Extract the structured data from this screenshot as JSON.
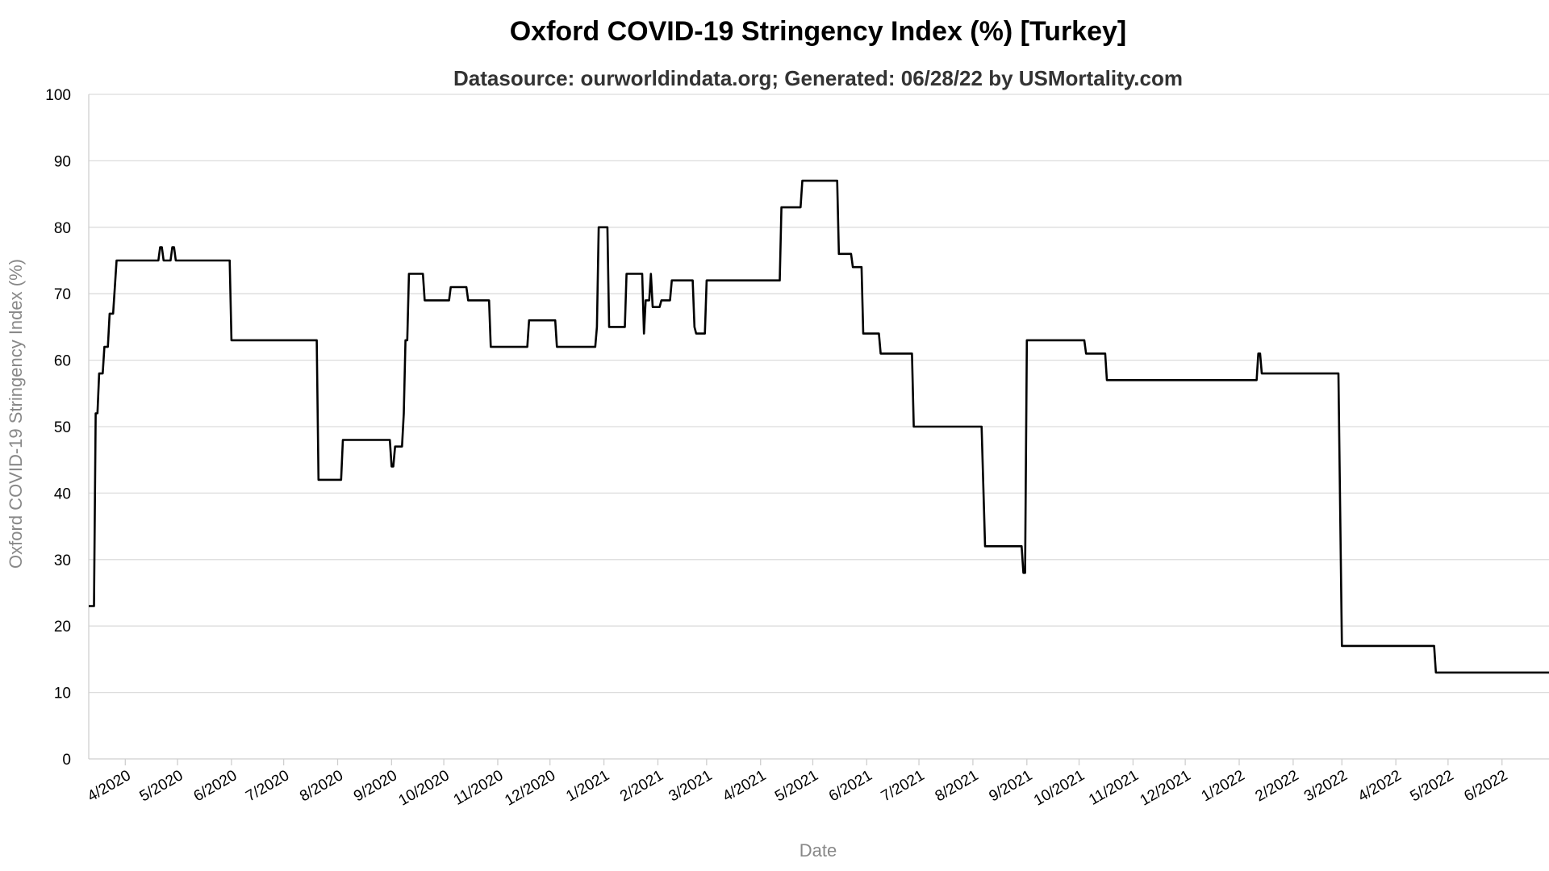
{
  "chart_data": {
    "type": "line",
    "title": "Oxford COVID-19 Stringency Index (%) [Turkey]",
    "subtitle": "Datasource: ourworldindata.org; Generated: 06/28/22 by USMortality.com",
    "xlabel": "Date",
    "ylabel": "Oxford COVID-19 Stringency Index (%)",
    "ylim": [
      0,
      100
    ],
    "yticks": [
      0,
      10,
      20,
      30,
      40,
      50,
      60,
      70,
      80,
      90,
      100
    ],
    "xlim": [
      "2020-03-11",
      "2022-06-28"
    ],
    "grid": true,
    "legend": "none",
    "line_color": "#000000",
    "xticks": [
      {
        "date": "2020-04-01",
        "label": "4/2020"
      },
      {
        "date": "2020-05-01",
        "label": "5/2020"
      },
      {
        "date": "2020-06-01",
        "label": "6/2020"
      },
      {
        "date": "2020-07-01",
        "label": "7/2020"
      },
      {
        "date": "2020-08-01",
        "label": "8/2020"
      },
      {
        "date": "2020-09-01",
        "label": "9/2020"
      },
      {
        "date": "2020-10-01",
        "label": "10/2020"
      },
      {
        "date": "2020-11-01",
        "label": "11/2020"
      },
      {
        "date": "2020-12-01",
        "label": "12/2020"
      },
      {
        "date": "2021-01-01",
        "label": "1/2021"
      },
      {
        "date": "2021-02-01",
        "label": "2/2021"
      },
      {
        "date": "2021-03-01",
        "label": "3/2021"
      },
      {
        "date": "2021-04-01",
        "label": "4/2021"
      },
      {
        "date": "2021-05-01",
        "label": "5/2021"
      },
      {
        "date": "2021-06-01",
        "label": "6/2021"
      },
      {
        "date": "2021-07-01",
        "label": "7/2021"
      },
      {
        "date": "2021-08-01",
        "label": "8/2021"
      },
      {
        "date": "2021-09-01",
        "label": "9/2021"
      },
      {
        "date": "2021-10-01",
        "label": "10/2021"
      },
      {
        "date": "2021-11-01",
        "label": "11/2021"
      },
      {
        "date": "2021-12-01",
        "label": "12/2021"
      },
      {
        "date": "2022-01-01",
        "label": "1/2022"
      },
      {
        "date": "2022-02-01",
        "label": "2/2022"
      },
      {
        "date": "2022-03-01",
        "label": "3/2022"
      },
      {
        "date": "2022-04-01",
        "label": "4/2022"
      },
      {
        "date": "2022-05-01",
        "label": "5/2022"
      },
      {
        "date": "2022-06-01",
        "label": "6/2022"
      }
    ],
    "series": [
      {
        "points": [
          [
            "2020-03-11",
            23
          ],
          [
            "2020-03-14",
            23
          ],
          [
            "2020-03-15",
            52
          ],
          [
            "2020-03-16",
            52
          ],
          [
            "2020-03-17",
            58
          ],
          [
            "2020-03-19",
            58
          ],
          [
            "2020-03-20",
            62
          ],
          [
            "2020-03-22",
            62
          ],
          [
            "2020-03-23",
            67
          ],
          [
            "2020-03-25",
            67
          ],
          [
            "2020-03-27",
            75
          ],
          [
            "2020-04-20",
            75
          ],
          [
            "2020-04-21",
            77
          ],
          [
            "2020-04-22",
            77
          ],
          [
            "2020-04-23",
            75
          ],
          [
            "2020-04-27",
            75
          ],
          [
            "2020-04-28",
            77
          ],
          [
            "2020-04-29",
            77
          ],
          [
            "2020-04-30",
            75
          ],
          [
            "2020-05-31",
            75
          ],
          [
            "2020-06-01",
            63
          ],
          [
            "2020-07-20",
            63
          ],
          [
            "2020-07-21",
            42
          ],
          [
            "2020-08-03",
            42
          ],
          [
            "2020-08-04",
            48
          ],
          [
            "2020-08-31",
            48
          ],
          [
            "2020-09-01",
            44
          ],
          [
            "2020-09-02",
            44
          ],
          [
            "2020-09-03",
            47
          ],
          [
            "2020-09-07",
            47
          ],
          [
            "2020-09-08",
            52
          ],
          [
            "2020-09-09",
            63
          ],
          [
            "2020-09-10",
            63
          ],
          [
            "2020-09-11",
            73
          ],
          [
            "2020-09-19",
            73
          ],
          [
            "2020-09-20",
            69
          ],
          [
            "2020-10-04",
            69
          ],
          [
            "2020-10-05",
            71
          ],
          [
            "2020-10-14",
            71
          ],
          [
            "2020-10-15",
            69
          ],
          [
            "2020-10-27",
            69
          ],
          [
            "2020-10-28",
            62
          ],
          [
            "2020-11-18",
            62
          ],
          [
            "2020-11-19",
            66
          ],
          [
            "2020-12-04",
            66
          ],
          [
            "2020-12-05",
            62
          ],
          [
            "2020-12-27",
            62
          ],
          [
            "2020-12-28",
            65
          ],
          [
            "2020-12-29",
            80
          ],
          [
            "2021-01-03",
            80
          ],
          [
            "2021-01-04",
            65
          ],
          [
            "2021-01-13",
            65
          ],
          [
            "2021-01-14",
            73
          ],
          [
            "2021-01-23",
            73
          ],
          [
            "2021-01-24",
            64
          ],
          [
            "2021-01-25",
            69
          ],
          [
            "2021-01-27",
            69
          ],
          [
            "2021-01-28",
            73
          ],
          [
            "2021-01-29",
            68
          ],
          [
            "2021-02-02",
            68
          ],
          [
            "2021-02-03",
            69
          ],
          [
            "2021-02-08",
            69
          ],
          [
            "2021-02-09",
            72
          ],
          [
            "2021-02-21",
            72
          ],
          [
            "2021-02-22",
            65
          ],
          [
            "2021-02-23",
            64
          ],
          [
            "2021-02-28",
            64
          ],
          [
            "2021-03-01",
            72
          ],
          [
            "2021-04-12",
            72
          ],
          [
            "2021-04-13",
            83
          ],
          [
            "2021-04-24",
            83
          ],
          [
            "2021-04-25",
            87
          ],
          [
            "2021-05-15",
            87
          ],
          [
            "2021-05-16",
            76
          ],
          [
            "2021-05-23",
            76
          ],
          [
            "2021-05-24",
            74
          ],
          [
            "2021-05-29",
            74
          ],
          [
            "2021-05-30",
            64
          ],
          [
            "2021-06-08",
            64
          ],
          [
            "2021-06-09",
            61
          ],
          [
            "2021-06-27",
            61
          ],
          [
            "2021-06-28",
            50
          ],
          [
            "2021-08-06",
            50
          ],
          [
            "2021-08-08",
            32
          ],
          [
            "2021-08-29",
            32
          ],
          [
            "2021-08-30",
            28
          ],
          [
            "2021-08-31",
            28
          ],
          [
            "2021-09-01",
            63
          ],
          [
            "2021-10-04",
            63
          ],
          [
            "2021-10-05",
            61
          ],
          [
            "2021-10-16",
            61
          ],
          [
            "2021-10-17",
            57
          ],
          [
            "2022-01-11",
            57
          ],
          [
            "2022-01-12",
            61
          ],
          [
            "2022-01-13",
            61
          ],
          [
            "2022-01-14",
            58
          ],
          [
            "2022-02-27",
            58
          ],
          [
            "2022-03-01",
            17
          ],
          [
            "2022-04-23",
            17
          ],
          [
            "2022-04-24",
            13
          ],
          [
            "2022-06-28",
            13
          ]
        ]
      }
    ]
  }
}
